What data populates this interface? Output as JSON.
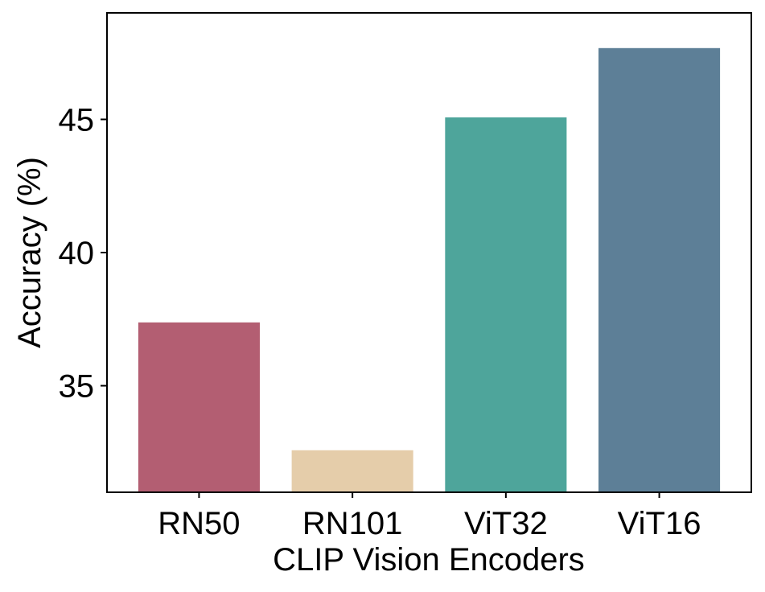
{
  "chart_data": {
    "type": "bar",
    "title": "",
    "xlabel": "CLIP Vision Encoders",
    "ylabel": "Accuracy (%)",
    "categories": [
      "RN50",
      "RN101",
      "ViT32",
      "ViT16"
    ],
    "values": [
      37.4,
      32.6,
      45.1,
      47.7
    ],
    "colors": [
      "#b35e72",
      "#e5cdaa",
      "#4ea59b",
      "#5d7f97"
    ],
    "ylim": [
      31.0,
      49.0
    ],
    "yticks": [
      35,
      40,
      45
    ],
    "grid": false,
    "legend": false
  }
}
